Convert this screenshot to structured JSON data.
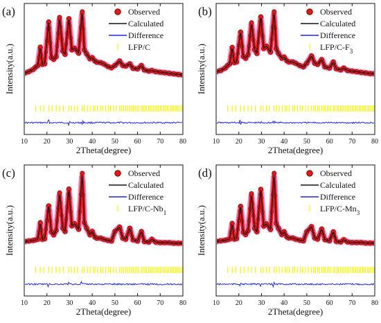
{
  "colors": {
    "observed_fill": "#e8161b",
    "observed_center": "#7a1a10",
    "observed_halo": "#f28cc4",
    "calculated": "#111111",
    "difference": "#1f27d9",
    "bragg": "#f5f500"
  },
  "chart_data": [
    {
      "type": "scatter",
      "panel": "(a)",
      "xlabel": "2Theta(degree)",
      "ylabel": "Intensity(a.u.)",
      "xlim": [
        10,
        80
      ],
      "xticks": [
        10,
        20,
        30,
        40,
        50,
        60,
        70,
        80
      ],
      "legend_position": "top-right",
      "series": [
        {
          "name": "Observed",
          "x": [
            10,
            12,
            14,
            15,
            16,
            17.1,
            18,
            19,
            20.8,
            22,
            23,
            24.1,
            25.6,
            27,
            28,
            29.7,
            31,
            32.2,
            34,
            35.6,
            36.5,
            37.5,
            39,
            40,
            41.2,
            42,
            43.8,
            45,
            47,
            48.5,
            50,
            52.1,
            53.5,
            54.8,
            56.6,
            58,
            60,
            61.7,
            63,
            65,
            66.3,
            68,
            70,
            72,
            74,
            76,
            78,
            80
          ],
          "y": [
            30,
            33,
            37,
            41,
            44,
            77,
            46,
            47,
            122,
            58,
            55,
            60,
            130,
            70,
            64,
            128,
            72,
            75,
            66,
            140,
            72,
            65,
            56,
            58,
            52,
            50,
            49,
            47,
            42,
            40,
            44,
            52,
            44,
            43,
            47,
            39,
            38,
            44,
            36,
            34,
            35,
            33,
            32,
            31,
            30,
            29,
            28,
            27
          ]
        },
        {
          "name": "Calculated"
        },
        {
          "name": "Difference"
        },
        {
          "name": "LFP/C"
        }
      ]
    },
    {
      "type": "scatter",
      "panel": "(b)",
      "xlabel": "2Theta(degree)",
      "ylabel": "Intensity(a.u.)",
      "xlim": [
        10,
        80
      ],
      "xticks": [
        10,
        20,
        30,
        40,
        50,
        60,
        70,
        80
      ],
      "legend_position": "top-right",
      "series": [
        {
          "name": "Observed",
          "x": [
            10,
            12,
            14,
            15,
            16,
            17.1,
            18,
            19,
            20.8,
            22,
            23,
            24.1,
            25.6,
            27,
            28,
            29.7,
            31,
            32.2,
            34,
            35.6,
            36.5,
            37.5,
            39,
            40,
            41.2,
            42,
            43.8,
            45,
            47,
            48.5,
            50,
            52.1,
            53.5,
            54.8,
            56.6,
            58,
            60,
            61.7,
            63,
            65,
            66.3,
            68,
            70,
            72,
            74,
            76,
            78,
            80
          ],
          "y": [
            30,
            32,
            36,
            40,
            43,
            70,
            45,
            46,
            95,
            55,
            52,
            58,
            110,
            66,
            60,
            120,
            68,
            72,
            62,
            128,
            68,
            60,
            52,
            54,
            48,
            46,
            46,
            44,
            40,
            38,
            44,
            56,
            44,
            42,
            50,
            38,
            36,
            46,
            35,
            33,
            36,
            32,
            31,
            30,
            29,
            28,
            27,
            27
          ]
        },
        {
          "name": "Calculated"
        },
        {
          "name": "Difference"
        },
        {
          "name": "LFP/C-F",
          "subscript": "3"
        }
      ]
    },
    {
      "type": "scatter",
      "panel": "(c)",
      "xlabel": "2Theta(degree)",
      "ylabel": "Intensity(a.u.)",
      "xlim": [
        10,
        80
      ],
      "xticks": [
        10,
        20,
        30,
        40,
        50,
        60,
        70,
        80
      ],
      "legend_position": "top-right",
      "series": [
        {
          "name": "Observed",
          "x": [
            10,
            12,
            14,
            15,
            16,
            17.1,
            18,
            19,
            20.8,
            22,
            23,
            24.1,
            25.6,
            27,
            28,
            29.7,
            31,
            32.2,
            34,
            35.6,
            36.5,
            37.5,
            39,
            40,
            41.2,
            42,
            43.8,
            45,
            47,
            48.5,
            50,
            52.1,
            53.5,
            54.8,
            56.6,
            58,
            60,
            61.7,
            63,
            65,
            66.3,
            68,
            70,
            72,
            74,
            76,
            78,
            80
          ],
          "y": [
            18,
            19,
            20,
            21,
            22,
            52,
            22,
            23,
            82,
            35,
            30,
            38,
            105,
            42,
            36,
            112,
            46,
            50,
            40,
            140,
            52,
            42,
            30,
            36,
            26,
            24,
            24,
            22,
            20,
            19,
            36,
            44,
            24,
            22,
            42,
            21,
            19,
            36,
            18,
            17,
            22,
            17,
            16,
            16,
            16,
            15,
            15,
            15
          ]
        },
        {
          "name": "Calculated"
        },
        {
          "name": "Difference"
        },
        {
          "name": "LFP/C-Nb",
          "subscript": "1"
        }
      ]
    },
    {
      "type": "scatter",
      "panel": "(d)",
      "xlabel": "2Theta(degree)",
      "ylabel": "Intensity(a.u.)",
      "xlim": [
        10,
        80
      ],
      "xticks": [
        10,
        20,
        30,
        40,
        50,
        60,
        70,
        80
      ],
      "legend_position": "top-right",
      "series": [
        {
          "name": "Observed",
          "x": [
            10,
            12,
            14,
            15,
            16,
            17.1,
            18,
            19,
            20.8,
            22,
            23,
            24.1,
            25.6,
            27,
            28,
            29.7,
            31,
            32.2,
            34,
            35.6,
            36.5,
            37.5,
            39,
            40,
            41.2,
            42,
            43.8,
            45,
            47,
            48.5,
            50,
            52.1,
            53.5,
            54.8,
            56.6,
            58,
            60,
            61.7,
            63,
            65,
            66.3,
            68,
            70,
            72,
            74,
            76,
            78,
            80
          ],
          "y": [
            18,
            19,
            20,
            21,
            22,
            50,
            22,
            23,
            80,
            34,
            30,
            37,
            102,
            41,
            35,
            110,
            45,
            49,
            39,
            138,
            50,
            41,
            30,
            35,
            26,
            24,
            24,
            22,
            20,
            19,
            35,
            44,
            24,
            22,
            40,
            21,
            19,
            35,
            18,
            17,
            21,
            17,
            16,
            16,
            16,
            15,
            15,
            15
          ]
        },
        {
          "name": "Calculated"
        },
        {
          "name": "Difference"
        },
        {
          "name": "LFP/C-Mn",
          "subscript": "3"
        }
      ]
    }
  ]
}
